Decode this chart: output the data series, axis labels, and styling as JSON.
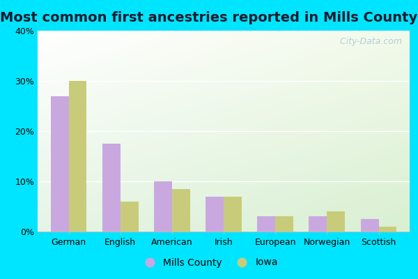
{
  "title": "Most common first ancestries reported in Mills County",
  "categories": [
    "German",
    "English",
    "American",
    "Irish",
    "European",
    "Norwegian",
    "Scottish"
  ],
  "mills_county": [
    27,
    17.5,
    10,
    7,
    3,
    3,
    2.5
  ],
  "iowa": [
    30,
    6,
    8.5,
    7,
    3,
    4,
    1
  ],
  "mills_color": "#c9a8e0",
  "iowa_color": "#c8cc7a",
  "ylim": [
    0,
    40
  ],
  "yticks": [
    0,
    10,
    20,
    30,
    40
  ],
  "ytick_labels": [
    "0%",
    "10%",
    "20%",
    "30%",
    "40%"
  ],
  "bar_width": 0.35,
  "outer_background": "#00e5ff",
  "watermark": "  City-Data.com",
  "legend_mills": "Mills County",
  "legend_iowa": "Iowa",
  "title_fontsize": 14,
  "tick_fontsize": 9
}
